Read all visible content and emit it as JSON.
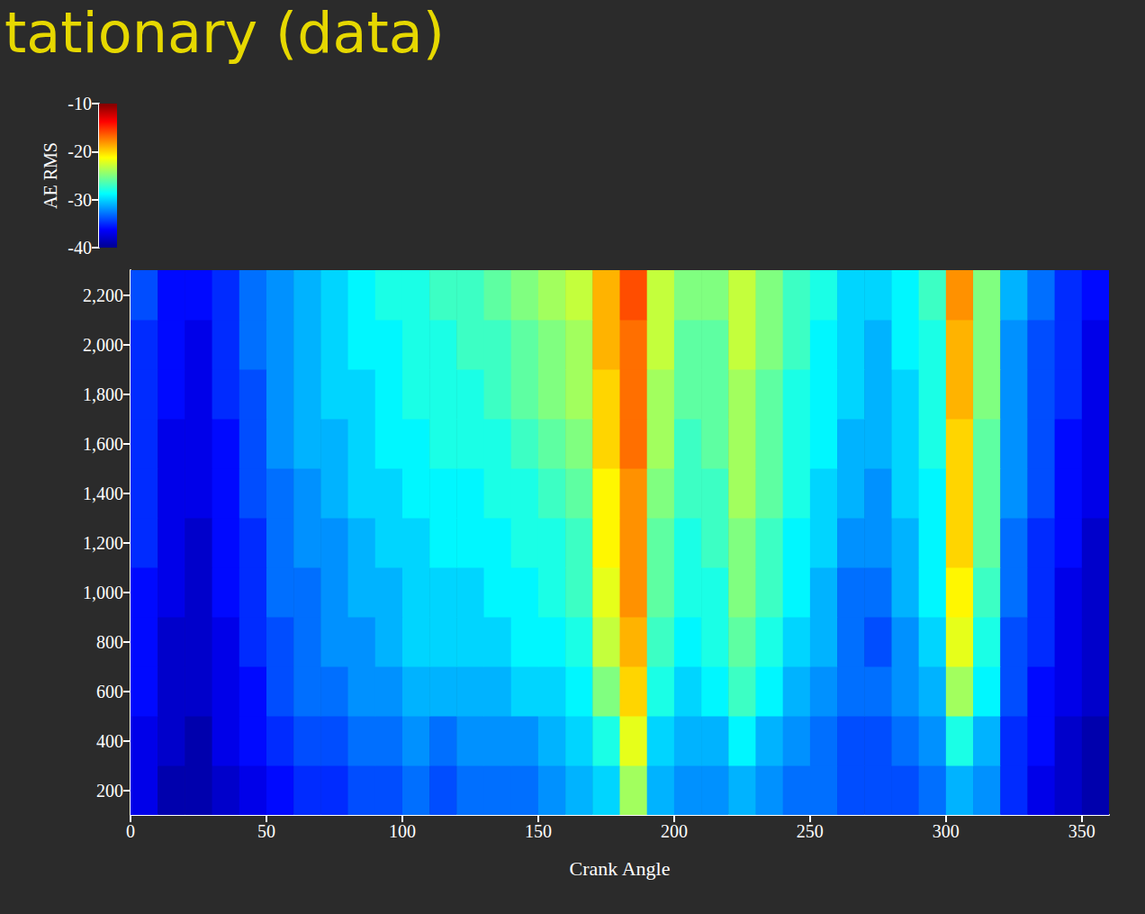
{
  "chart_data": {
    "type": "heatmap",
    "title": "tationary (data)",
    "xlabel": "Crank Angle",
    "x": [
      0,
      10,
      20,
      30,
      40,
      50,
      60,
      70,
      80,
      90,
      100,
      110,
      120,
      130,
      140,
      150,
      160,
      170,
      180,
      190,
      200,
      210,
      220,
      230,
      240,
      250,
      260,
      270,
      280,
      290,
      300,
      310,
      320,
      330,
      340,
      350
    ],
    "y": [
      200,
      400,
      600,
      800,
      1000,
      1200,
      1400,
      1600,
      1800,
      2000,
      2200
    ],
    "values": [
      [
        -37,
        -39,
        -39,
        -38,
        -37,
        -36,
        -35,
        -35,
        -34,
        -34,
        -33,
        -34,
        -33,
        -33,
        -33,
        -32,
        -31,
        -30,
        -24,
        -31,
        -32,
        -32,
        -31,
        -32,
        -33,
        -33,
        -34,
        -34,
        -34,
        -33,
        -31,
        -32,
        -35,
        -37,
        -38,
        -39
      ],
      [
        -37,
        -38,
        -39,
        -37,
        -36,
        -35,
        -34,
        -34,
        -33,
        -33,
        -32,
        -33,
        -32,
        -32,
        -32,
        -31,
        -30,
        -28,
        -22,
        -30,
        -31,
        -31,
        -29,
        -31,
        -32,
        -33,
        -34,
        -34,
        -33,
        -32,
        -28,
        -31,
        -35,
        -36,
        -38,
        -39
      ],
      [
        -36,
        -38,
        -38,
        -37,
        -36,
        -34,
        -33,
        -33,
        -32,
        -32,
        -31,
        -31,
        -31,
        -31,
        -30,
        -30,
        -29,
        -25,
        -20,
        -28,
        -30,
        -29,
        -27,
        -29,
        -31,
        -32,
        -33,
        -33,
        -32,
        -31,
        -24,
        -29,
        -34,
        -36,
        -37,
        -38
      ],
      [
        -36,
        -38,
        -38,
        -37,
        -35,
        -34,
        -33,
        -32,
        -32,
        -31,
        -30,
        -30,
        -30,
        -30,
        -29,
        -29,
        -28,
        -23,
        -19,
        -27,
        -29,
        -28,
        -26,
        -28,
        -30,
        -31,
        -33,
        -34,
        -32,
        -30,
        -22,
        -28,
        -34,
        -35,
        -37,
        -38
      ],
      [
        -36,
        -37,
        -38,
        -36,
        -35,
        -33,
        -33,
        -32,
        -31,
        -31,
        -30,
        -30,
        -30,
        -29,
        -29,
        -28,
        -27,
        -22,
        -18,
        -26,
        -28,
        -28,
        -25,
        -27,
        -29,
        -31,
        -33,
        -33,
        -31,
        -29,
        -21,
        -27,
        -33,
        -35,
        -37,
        -38
      ],
      [
        -35,
        -37,
        -38,
        -36,
        -35,
        -33,
        -32,
        -32,
        -31,
        -30,
        -30,
        -29,
        -29,
        -29,
        -28,
        -28,
        -27,
        -21,
        -18,
        -26,
        -28,
        -27,
        -25,
        -27,
        -29,
        -30,
        -32,
        -32,
        -31,
        -29,
        -20,
        -26,
        -33,
        -35,
        -36,
        -38
      ],
      [
        -35,
        -37,
        -37,
        -36,
        -34,
        -33,
        -32,
        -31,
        -30,
        -30,
        -29,
        -29,
        -29,
        -28,
        -28,
        -27,
        -26,
        -21,
        -18,
        -25,
        -27,
        -27,
        -24,
        -26,
        -28,
        -30,
        -31,
        -32,
        -30,
        -29,
        -20,
        -26,
        -32,
        -34,
        -36,
        -37
      ],
      [
        -35,
        -37,
        -37,
        -36,
        -34,
        -32,
        -31,
        -31,
        -30,
        -29,
        -29,
        -28,
        -28,
        -28,
        -27,
        -26,
        -25,
        -20,
        -17,
        -24,
        -27,
        -26,
        -24,
        -26,
        -28,
        -29,
        -31,
        -31,
        -30,
        -28,
        -20,
        -26,
        -32,
        -34,
        -36,
        -37
      ],
      [
        -35,
        -36,
        -37,
        -35,
        -34,
        -32,
        -31,
        -30,
        -30,
        -29,
        -28,
        -28,
        -28,
        -27,
        -26,
        -25,
        -24,
        -20,
        -17,
        -24,
        -26,
        -26,
        -24,
        -26,
        -28,
        -29,
        -30,
        -31,
        -30,
        -28,
        -19,
        -25,
        -32,
        -34,
        -35,
        -37
      ],
      [
        -35,
        -36,
        -37,
        -35,
        -33,
        -32,
        -31,
        -30,
        -29,
        -29,
        -28,
        -28,
        -27,
        -27,
        -26,
        -25,
        -24,
        -19,
        -17,
        -23,
        -26,
        -26,
        -23,
        -25,
        -27,
        -29,
        -30,
        -31,
        -29,
        -28,
        -19,
        -25,
        -32,
        -34,
        -35,
        -37
      ],
      [
        -34,
        -36,
        -36,
        -35,
        -33,
        -32,
        -31,
        -30,
        -29,
        -28,
        -28,
        -27,
        -27,
        -26,
        -25,
        -24,
        -23,
        -19,
        -16,
        -23,
        -25,
        -25,
        -23,
        -25,
        -27,
        -28,
        -30,
        -30,
        -29,
        -27,
        -18,
        -25,
        -31,
        -33,
        -35,
        -36
      ]
    ],
    "xlim": [
      0,
      360
    ],
    "xticks": [
      0,
      50,
      100,
      150,
      200,
      250,
      300,
      350
    ],
    "ylim": [
      100,
      2300
    ],
    "yticks": [
      200,
      400,
      600,
      800,
      1000,
      1200,
      1400,
      1600,
      1800,
      2000,
      2200
    ],
    "grid": false,
    "colorbar": {
      "label": "AE RMS",
      "range": [
        -40,
        -10
      ],
      "ticks": [
        -40,
        -30,
        -20,
        -10
      ]
    }
  }
}
